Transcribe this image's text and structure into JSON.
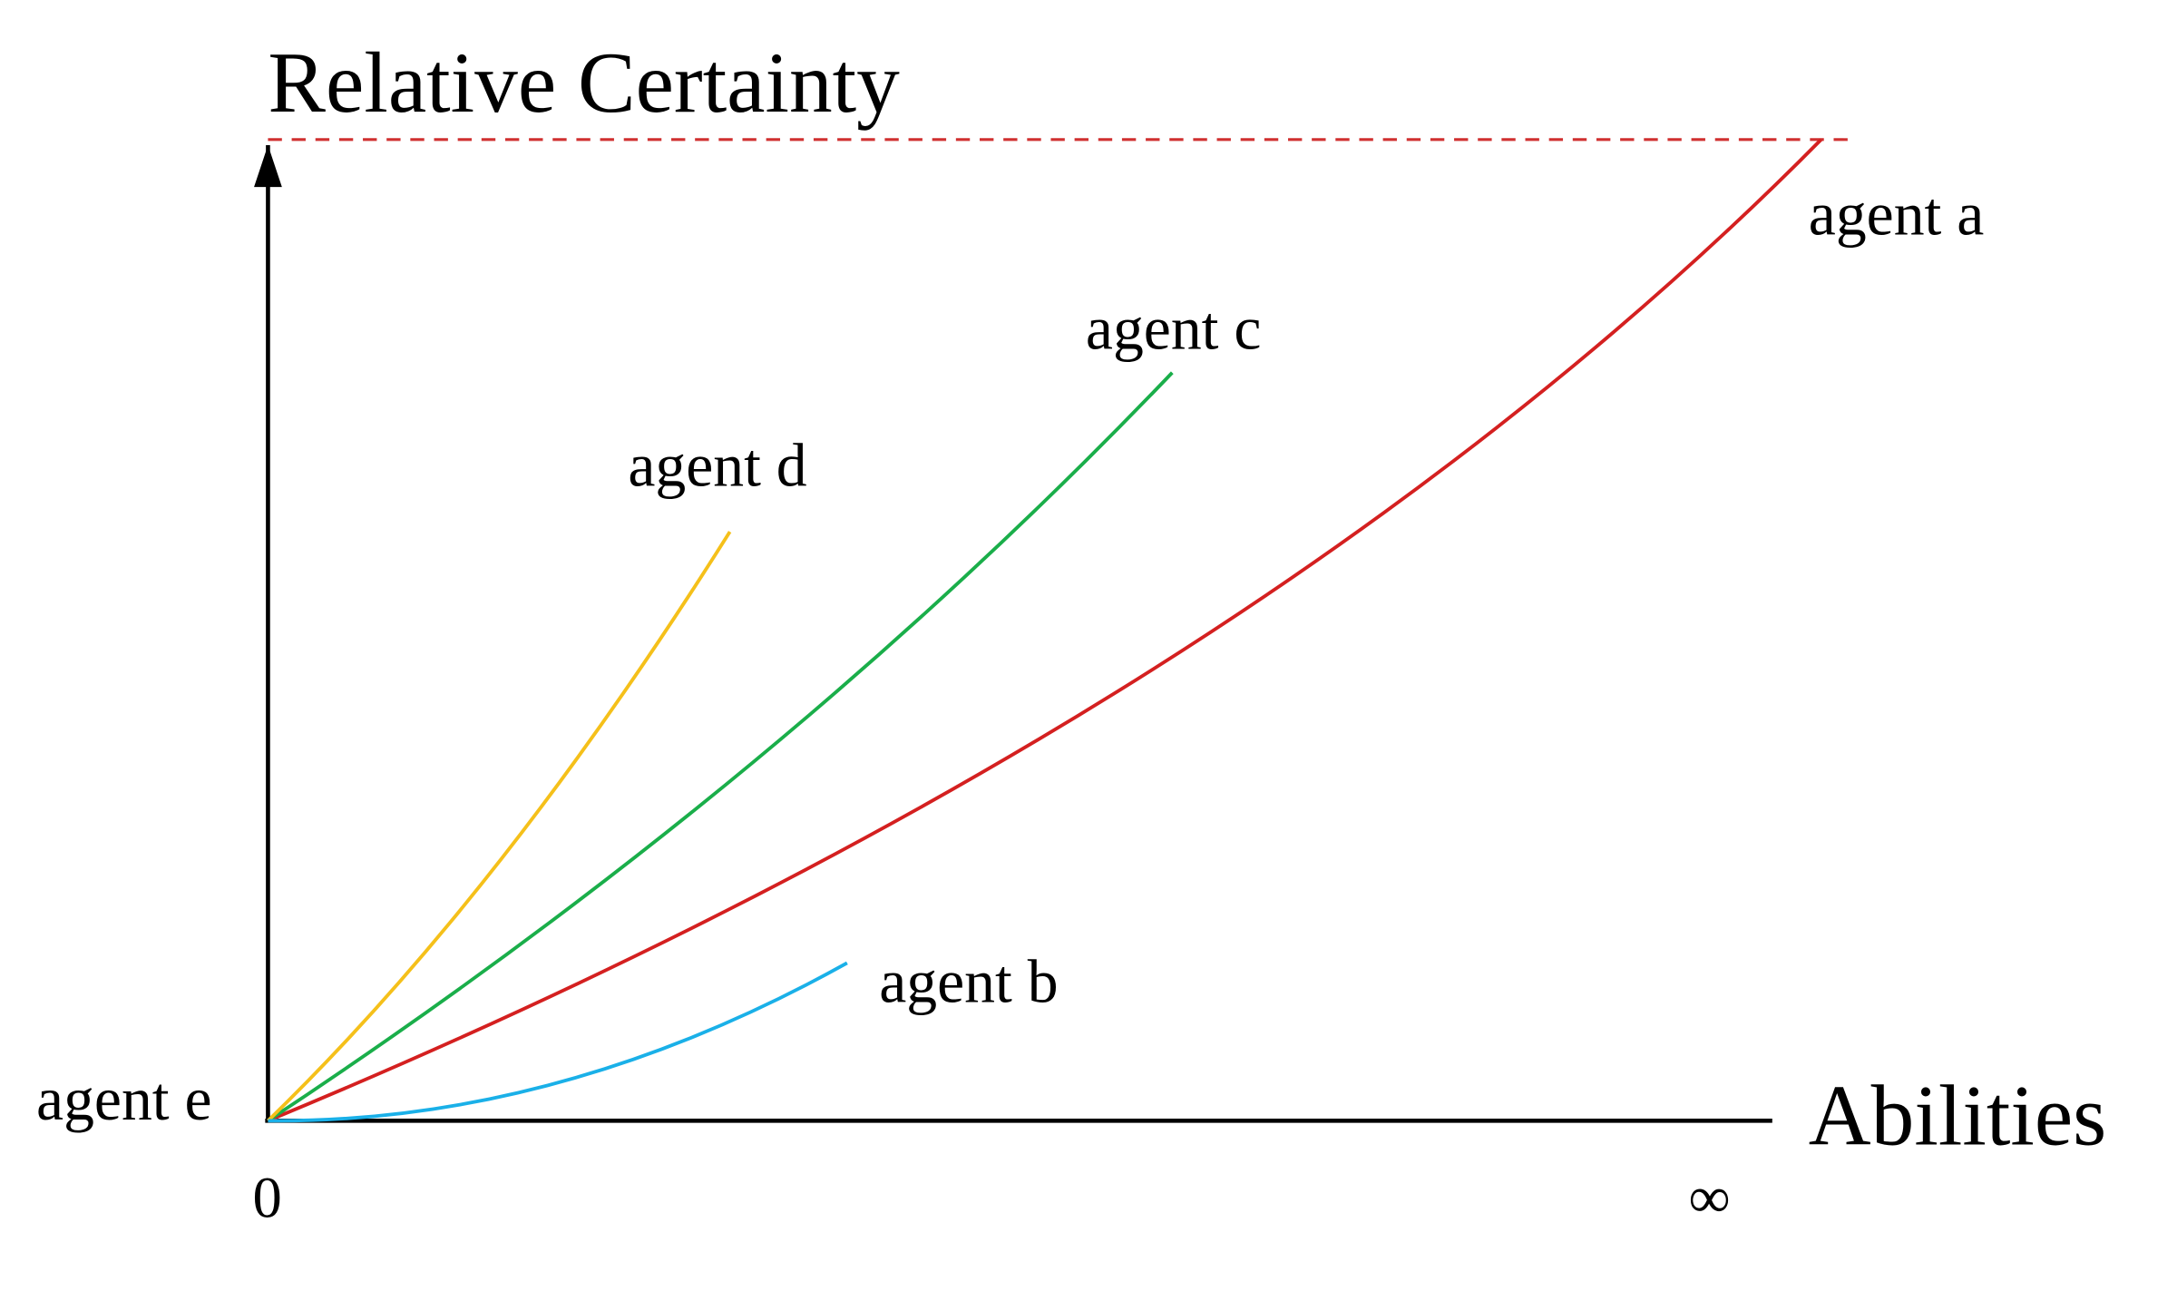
{
  "y_axis": {
    "label": "Relative Certainty"
  },
  "x_axis": {
    "label": "Abilities",
    "start": "0",
    "end": "∞"
  },
  "agents": [
    {
      "label": "agent a"
    },
    {
      "label": "agent b"
    },
    {
      "label": "agent c"
    },
    {
      "label": "agent d"
    },
    {
      "label": "agent e"
    }
  ]
}
